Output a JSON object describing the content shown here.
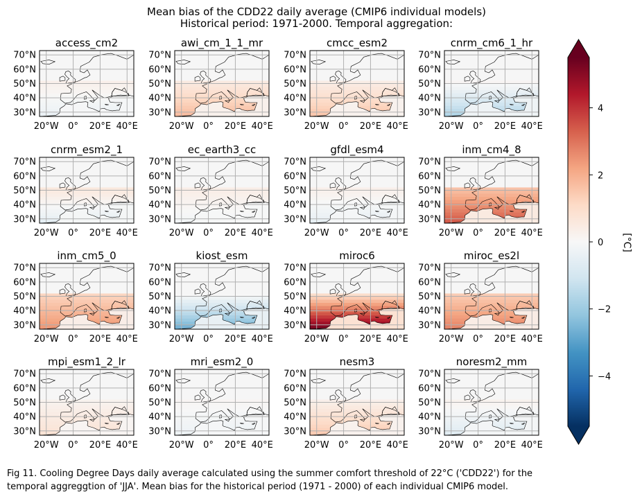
{
  "title": {
    "line1": "Mean bias of the CDD22 daily average (CMIP6 individual models)",
    "line2": "Historical period: 1971-2000. Temporal aggregation:"
  },
  "caption": {
    "line1": "Fig 11. Cooling Degree Days daily average calculated using the summer comfort threshold of 22°C ('CDD22') for the",
    "line2": "temporal aggreggtion of 'JJA'. Mean bias for the historical period (1971 - 2000) of each individual CMIP6 model."
  },
  "chart_data": {
    "type": "heatmap",
    "layout": "4x4 grid of map panels",
    "panels": [
      {
        "name": "access_cm2",
        "north_bias": 0.3,
        "south_bias": -0.4
      },
      {
        "name": "awi_cm_1_1_mr",
        "north_bias": 0.5,
        "south_bias": 1.8
      },
      {
        "name": "cmcc_esm2",
        "north_bias": 0.4,
        "south_bias": 1.6
      },
      {
        "name": "cnrm_cm6_1_hr",
        "north_bias": 0.1,
        "south_bias": -1.8
      },
      {
        "name": "cnrm_esm2_1",
        "north_bias": 0.6,
        "south_bias": -0.6
      },
      {
        "name": "ec_earth3_cc",
        "north_bias": 0.4,
        "south_bias": -0.2
      },
      {
        "name": "gfdl_esm4",
        "north_bias": 0.3,
        "south_bias": -0.5
      },
      {
        "name": "inm_cm4_8",
        "north_bias": 1.6,
        "south_bias": 3.5
      },
      {
        "name": "inm_cm5_0",
        "north_bias": 1.2,
        "south_bias": 2.5
      },
      {
        "name": "kiost_esm",
        "north_bias": 0.0,
        "south_bias": -2.8
      },
      {
        "name": "miroc6",
        "north_bias": 1.0,
        "south_bias": 5.5
      },
      {
        "name": "miroc_es2l",
        "north_bias": 1.4,
        "south_bias": 2.8
      },
      {
        "name": "mpi_esm1_2_lr",
        "north_bias": 0.2,
        "south_bias": 0.8
      },
      {
        "name": "mri_esm2_0",
        "north_bias": 0.1,
        "south_bias": -0.3
      },
      {
        "name": "nesm3",
        "north_bias": 0.3,
        "south_bias": 1.5
      },
      {
        "name": "noresm2_mm",
        "north_bias": 0.2,
        "south_bias": -0.7
      }
    ],
    "lon_range": [
      -25,
      45
    ],
    "lat_range": [
      27,
      73
    ],
    "x_ticks": [
      "20°W",
      "0°",
      "20°E",
      "40°E"
    ],
    "x_tick_values": [
      -20,
      0,
      20,
      40
    ],
    "y_ticks": [
      "30°N",
      "40°N",
      "50°N",
      "60°N",
      "70°N"
    ],
    "y_tick_values": [
      30,
      40,
      50,
      60,
      70
    ],
    "grid": true,
    "colorbar": {
      "label": "[°C]",
      "range": [
        -5.5,
        5.5
      ],
      "ticks": [
        -4,
        -2,
        0,
        2,
        4
      ],
      "tick_labels": [
        "−4",
        "−2",
        "0",
        "2",
        "4"
      ],
      "colormap": "RdBu_r",
      "extend": "both",
      "colors": {
        "dark_blue": "#053061",
        "blue": "#2166ac",
        "light_blue": "#92c5de",
        "white": "#f7f7f7",
        "light_red": "#f4a582",
        "red": "#b2182b",
        "dark_red": "#67001f"
      }
    }
  }
}
